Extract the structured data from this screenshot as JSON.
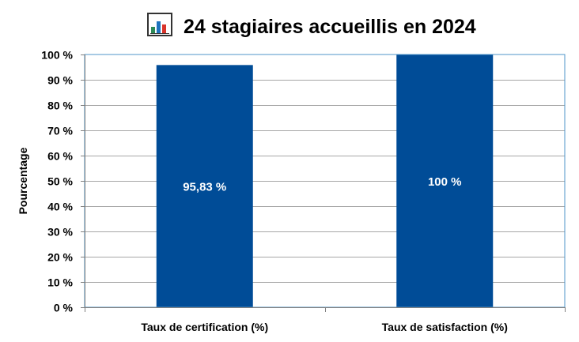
{
  "chart_data": {
    "type": "bar",
    "title": "24 stagiaires accueillis en 2024",
    "title_icon": "bar-chart-icon",
    "categories": [
      "Taux de certification (%)",
      "Taux de satisfaction (%)"
    ],
    "values": [
      95.83,
      100
    ],
    "data_labels": [
      "95,83 %",
      "100 %"
    ],
    "xlabel": "",
    "ylabel": "Pourcentage",
    "ylim": [
      0,
      100
    ],
    "yticks": [
      0,
      10,
      20,
      30,
      40,
      50,
      60,
      70,
      80,
      90,
      100
    ],
    "ytick_labels": [
      "0 %",
      "10 %",
      "20 %",
      "30 %",
      "40 %",
      "50 %",
      "60 %",
      "70 %",
      "80 %",
      "90 %",
      "100 %"
    ],
    "grid": true,
    "legend": "none",
    "colors": {
      "bar": "#004C97",
      "grid": "#A6A6A6",
      "plot_border": "#4F95C8",
      "data_label": "#FFFFFF",
      "text": "#000000"
    }
  }
}
